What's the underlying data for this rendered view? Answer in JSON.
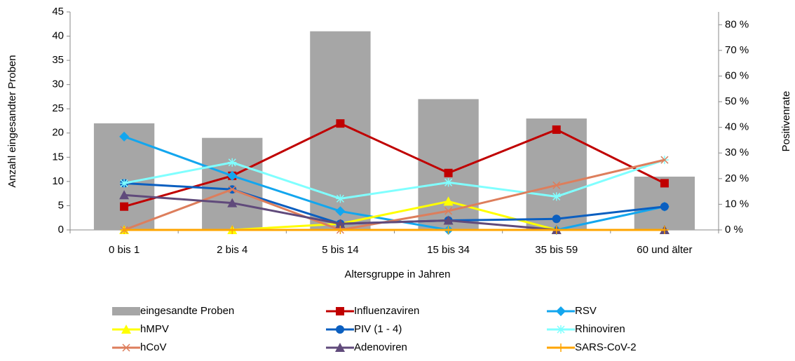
{
  "chart_data": {
    "type": "combo",
    "x_label": "Altersgruppe in Jahren",
    "y_label": "Anzahl eingesandter Proben",
    "y2_label": "Positivenrate",
    "categories": [
      "0 bis 1",
      "2 bis 4",
      "5 bis 14",
      "15 bis 34",
      "35 bis 59",
      "60 und älter"
    ],
    "ylim": [
      0,
      45
    ],
    "yticks": [
      0,
      5,
      10,
      15,
      20,
      25,
      30,
      35,
      40,
      45
    ],
    "y2lim": [
      0,
      85
    ],
    "y2ticks": [
      {
        "value": 0,
        "label": "0 %"
      },
      {
        "value": 10,
        "label": "10 %"
      },
      {
        "value": 20,
        "label": "20 %"
      },
      {
        "value": 30,
        "label": "30 %"
      },
      {
        "value": 40,
        "label": "40 %"
      },
      {
        "value": 50,
        "label": "50 %"
      },
      {
        "value": 60,
        "label": "60 %"
      },
      {
        "value": 70,
        "label": "70 %"
      },
      {
        "value": 80,
        "label": "80 %"
      }
    ],
    "series": [
      {
        "name": "eingesandte Proben",
        "type": "bar",
        "color": "#a6a6a6",
        "values": [
          22,
          19,
          41,
          27,
          23,
          11
        ]
      },
      {
        "name": "Influenzaviren",
        "type": "line",
        "axis": "y2",
        "marker": "square",
        "color": "#c00000",
        "values": [
          9.1,
          21.1,
          41.5,
          22.2,
          39.1,
          18.2
        ]
      },
      {
        "name": "RSV",
        "type": "line",
        "axis": "y2",
        "marker": "diamond",
        "color": "#13a6ee",
        "values": [
          36.4,
          21.1,
          7.3,
          0,
          0,
          9.1
        ]
      },
      {
        "name": "hMPV",
        "type": "line",
        "axis": "y2",
        "marker": "triangle",
        "color": "#ffff00",
        "values": [
          0,
          0,
          2.4,
          11.1,
          0,
          0
        ]
      },
      {
        "name": "PIV (1 - 4)",
        "type": "line",
        "axis": "y2",
        "marker": "circle",
        "color": "#0b5fc0",
        "values": [
          18.2,
          15.8,
          2.4,
          3.7,
          4.3,
          9.1
        ]
      },
      {
        "name": "Rhinoviren",
        "type": "line",
        "axis": "y2",
        "marker": "star",
        "color": "#80ffff",
        "values": [
          18.2,
          26.3,
          12.2,
          18.5,
          13.0,
          27.3
        ]
      },
      {
        "name": "hCoV",
        "type": "line",
        "axis": "y2",
        "marker": "x",
        "color": "#dd7e5c",
        "values": [
          0,
          15.8,
          0,
          7.4,
          17.4,
          27.3
        ]
      },
      {
        "name": "Adenoviren",
        "type": "line",
        "axis": "y2",
        "marker": "triangle",
        "color": "#604a7b",
        "values": [
          13.6,
          10.5,
          2.4,
          3.7,
          0,
          0
        ]
      },
      {
        "name": "SARS-CoV-2",
        "type": "line",
        "axis": "y2",
        "marker": "plus",
        "color": "#ffa500",
        "values": [
          0,
          0,
          0,
          0,
          0,
          0
        ]
      }
    ]
  }
}
